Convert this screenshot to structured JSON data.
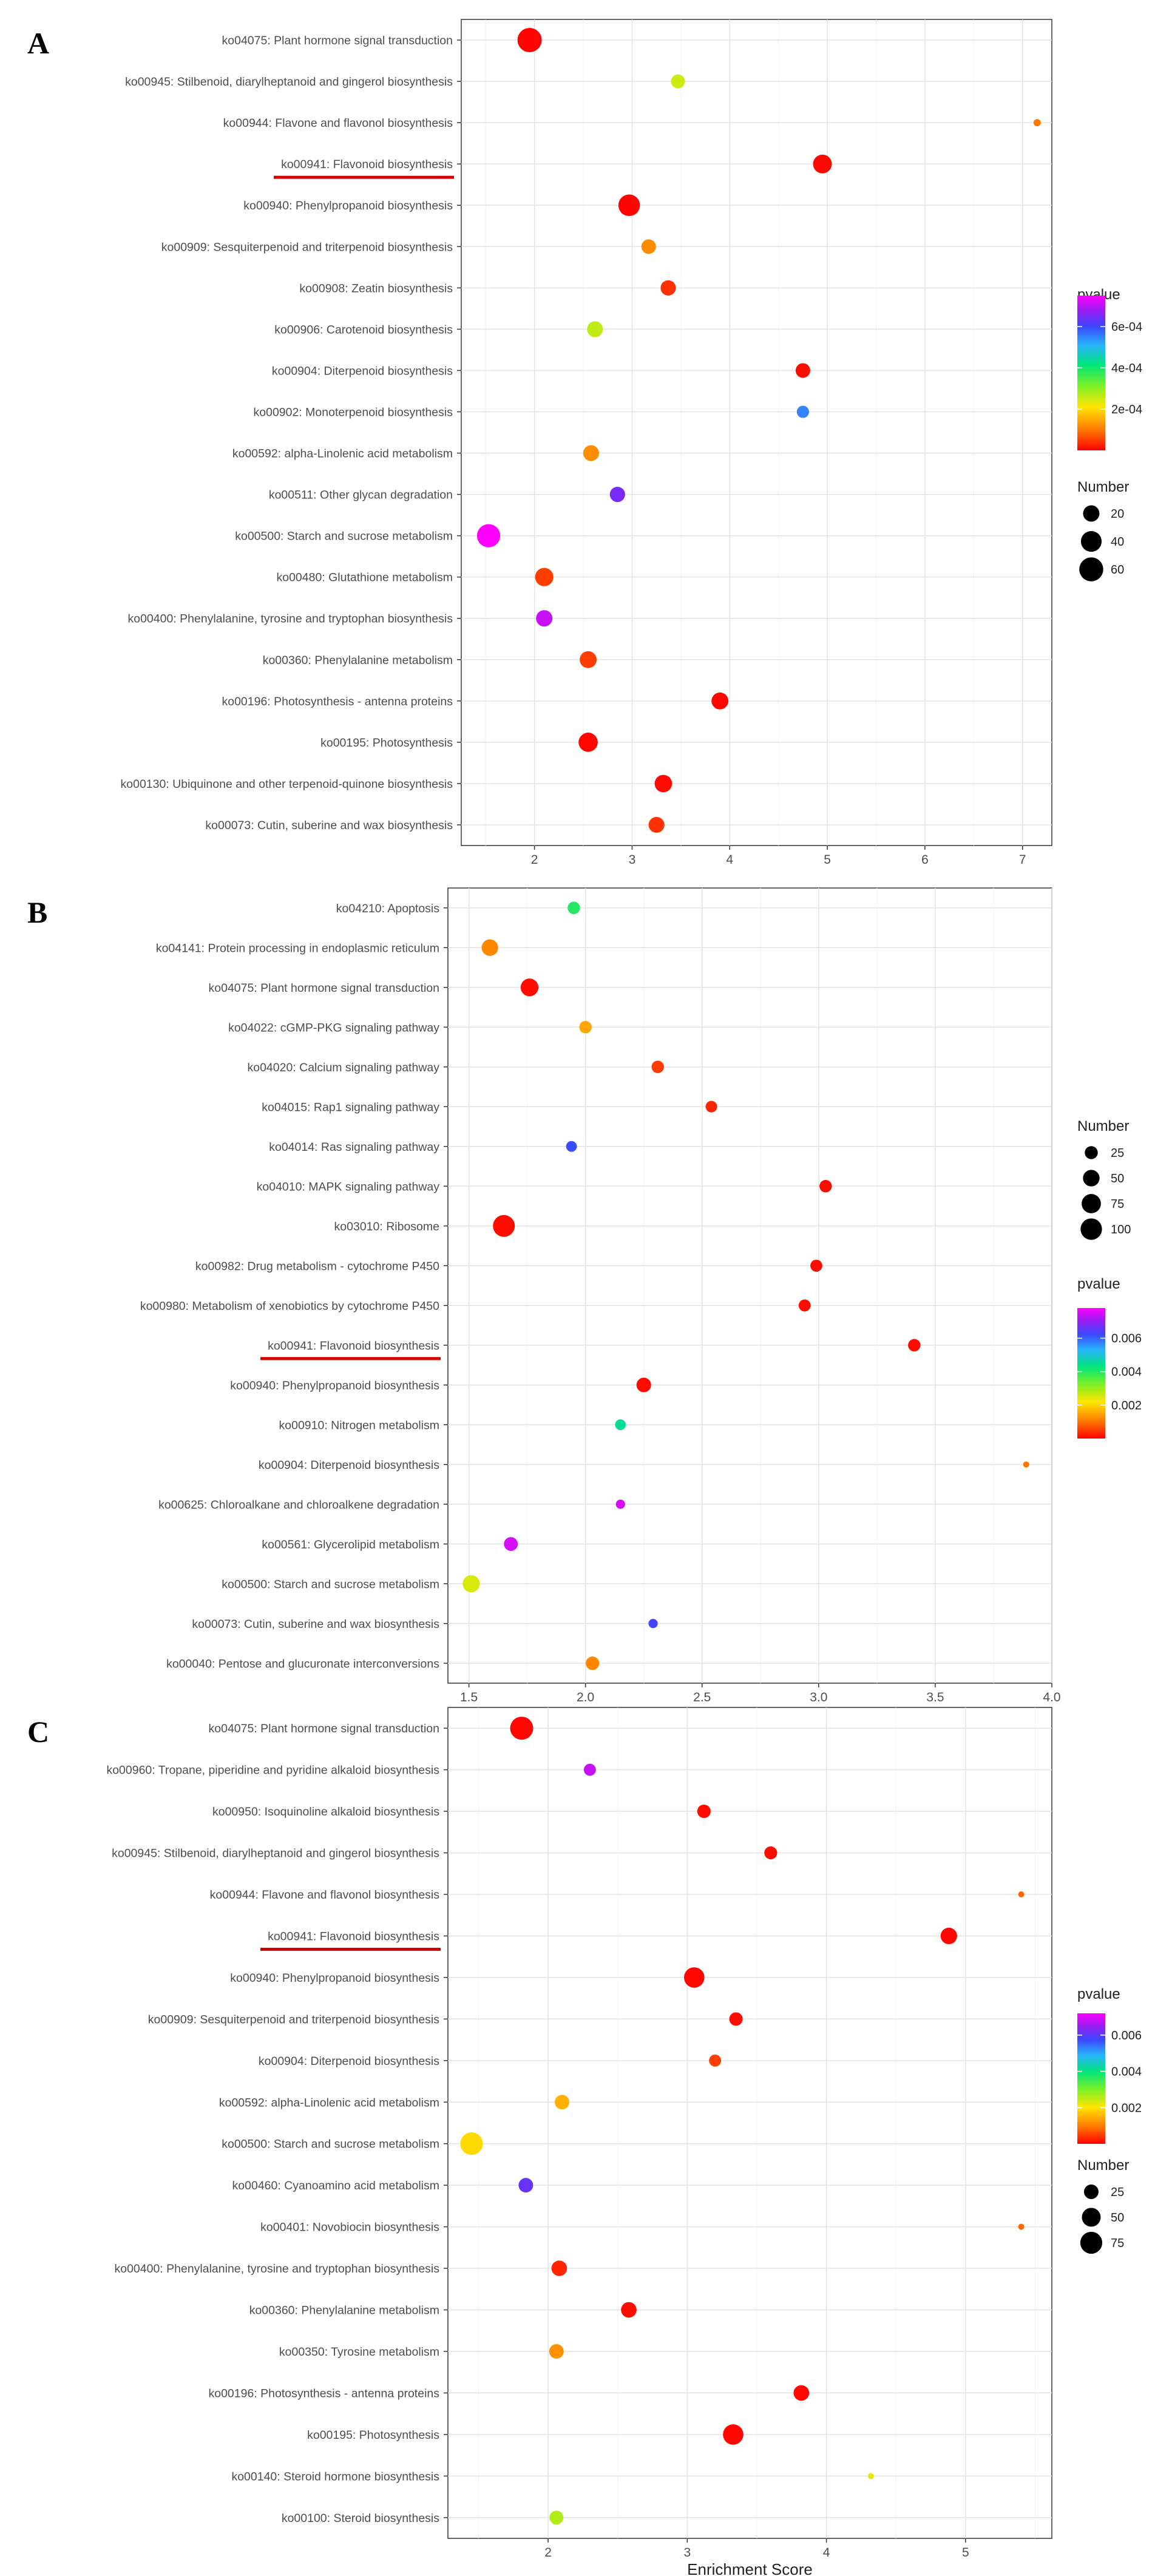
{
  "chart_data": [
    {
      "panel": "A",
      "type": "scatter",
      "title": "",
      "xlabel": "",
      "ylabel": "",
      "xlim": [
        1.25,
        7.3
      ],
      "xticks": [
        2,
        3,
        4,
        5,
        6,
        7
      ],
      "highlight": "ko00941: Flavonoid biosynthesis",
      "points": [
        {
          "label": "ko04075: Plant hormone signal transduction",
          "x": 1.95,
          "number": 62,
          "pvalue": 3e-06
        },
        {
          "label": "ko00945: Stilbenoid, diarylheptanoid and gingerol biosynthesis",
          "x": 3.47,
          "number": 12,
          "pvalue": 0.00025
        },
        {
          "label": "ko00944: Flavone and flavonol biosynthesis",
          "x": 7.15,
          "number": 3,
          "pvalue": 0.0001
        },
        {
          "label": "ko00941: Flavonoid biosynthesis",
          "x": 4.95,
          "number": 30,
          "pvalue": 5e-06
        },
        {
          "label": "ko00940: Phenylpropanoid biosynthesis",
          "x": 2.97,
          "number": 45,
          "pvalue": 3e-06
        },
        {
          "label": "ko00909: Sesquiterpenoid and triterpenoid biosynthesis",
          "x": 3.17,
          "number": 14,
          "pvalue": 0.00012
        },
        {
          "label": "ko00908: Zeatin biosynthesis",
          "x": 3.37,
          "number": 16,
          "pvalue": 4e-05
        },
        {
          "label": "ko00906: Carotenoid biosynthesis",
          "x": 2.62,
          "number": 18,
          "pvalue": 0.00026
        },
        {
          "label": "ko00904: Diterpenoid biosynthesis",
          "x": 4.75,
          "number": 14,
          "pvalue": 1e-05
        },
        {
          "label": "ko00902: Monoterpenoid biosynthesis",
          "x": 4.75,
          "number": 8,
          "pvalue": 0.00055
        },
        {
          "label": "ko00592: alpha-Linolenic acid metabolism",
          "x": 2.58,
          "number": 18,
          "pvalue": 0.00012
        },
        {
          "label": "ko00511: Other glycan degradation",
          "x": 2.85,
          "number": 16,
          "pvalue": 0.00065
        },
        {
          "label": "ko00500: Starch and sucrose metabolism",
          "x": 1.53,
          "number": 55,
          "pvalue": 0.00075
        },
        {
          "label": "ko00480: Glutathione metabolism",
          "x": 2.1,
          "number": 28,
          "pvalue": 5e-05
        },
        {
          "label": "ko00400: Phenylalanine, tyrosine and tryptophan biosynthesis",
          "x": 2.1,
          "number": 20,
          "pvalue": 0.00071
        },
        {
          "label": "ko00360: Phenylalanine metabolism",
          "x": 2.55,
          "number": 22,
          "pvalue": 5e-05
        },
        {
          "label": "ko00196: Photosynthesis - antenna proteins",
          "x": 3.9,
          "number": 22,
          "pvalue": 5e-06
        },
        {
          "label": "ko00195: Photosynthesis",
          "x": 2.55,
          "number": 32,
          "pvalue": 5e-06
        },
        {
          "label": "ko00130: Ubiquinone and other terpenoid-quinone biosynthesis",
          "x": 3.32,
          "number": 24,
          "pvalue": 8e-06
        },
        {
          "label": "ko00073: Cutin, suberine and wax biosynthesis",
          "x": 3.25,
          "number": 18,
          "pvalue": 4e-05
        }
      ],
      "color_legend": {
        "title": "pvalue",
        "min": 0,
        "max": 0.00075,
        "ticks": [
          0.0002,
          0.0004,
          0.0006
        ],
        "tick_labels": [
          "2e-04",
          "4e-04",
          "6e-04"
        ]
      },
      "size_legend": {
        "title": "Number",
        "values": [
          20,
          40,
          60
        ],
        "labels": [
          "20",
          "40",
          "60"
        ],
        "range": [
          3,
          62
        ]
      }
    },
    {
      "panel": "B",
      "type": "scatter",
      "title": "",
      "xlabel": "",
      "ylabel": "",
      "xlim": [
        1.41,
        4.0
      ],
      "xticks": [
        1.5,
        2.0,
        2.5,
        3.0,
        3.5,
        4.0
      ],
      "xtick_labels": [
        "1.5",
        "2.0",
        "2.5",
        "3.0",
        "3.5",
        "4.0"
      ],
      "highlight": "ko00941: Flavonoid biosynthesis",
      "points": [
        {
          "label": "ko04210: Apoptosis",
          "x": 1.95,
          "number": 22,
          "pvalue": 0.004
        },
        {
          "label": "ko04141: Protein processing in endoplasmic reticulum",
          "x": 1.59,
          "number": 50,
          "pvalue": 0.0012
        },
        {
          "label": "ko04075: Plant hormone signal transduction",
          "x": 1.76,
          "number": 60,
          "pvalue": 0.0001
        },
        {
          "label": "ko04022: cGMP-PKG signaling pathway",
          "x": 2.0,
          "number": 22,
          "pvalue": 0.0015
        },
        {
          "label": "ko04020: Calcium signaling pathway",
          "x": 2.31,
          "number": 22,
          "pvalue": 0.0005
        },
        {
          "label": "ko04015: Rap1 signaling pathway",
          "x": 2.54,
          "number": 18,
          "pvalue": 0.0003
        },
        {
          "label": "ko04014: Ras signaling pathway",
          "x": 1.94,
          "number": 15,
          "pvalue": 0.0062
        },
        {
          "label": "ko04010: MAPK signaling pathway",
          "x": 3.03,
          "number": 22,
          "pvalue": 0.0001
        },
        {
          "label": "ko03010: Ribosome",
          "x": 1.65,
          "number": 105,
          "pvalue": 0.0001
        },
        {
          "label": "ko00982: Drug metabolism - cytochrome P450",
          "x": 2.99,
          "number": 20,
          "pvalue": 0.0001
        },
        {
          "label": "ko00980: Metabolism of xenobiotics by cytochrome P450",
          "x": 2.94,
          "number": 20,
          "pvalue": 0.0001
        },
        {
          "label": "ko00941: Flavonoid biosynthesis",
          "x": 3.41,
          "number": 22,
          "pvalue": 0.0001
        },
        {
          "label": "ko00940: Phenylpropanoid biosynthesis",
          "x": 2.25,
          "number": 35,
          "pvalue": 0.0001
        },
        {
          "label": "ko00910: Nitrogen metabolism",
          "x": 2.15,
          "number": 15,
          "pvalue": 0.0045
        },
        {
          "label": "ko00904: Diterpenoid biosynthesis",
          "x": 3.89,
          "number": 6,
          "pvalue": 0.001
        },
        {
          "label": "ko00625: Chloroalkane and chloroalkene degradation",
          "x": 2.15,
          "number": 10,
          "pvalue": 0.0075
        },
        {
          "label": "ko00561: Glycerolipid metabolism",
          "x": 1.68,
          "number": 30,
          "pvalue": 0.0075
        },
        {
          "label": "ko00500: Starch and sucrose metabolism",
          "x": 1.51,
          "number": 55,
          "pvalue": 0.0025
        },
        {
          "label": "ko00073: Cutin, suberine and wax biosynthesis",
          "x": 2.29,
          "number": 10,
          "pvalue": 0.0063
        },
        {
          "label": "ko00040: Pentose and glucuronate interconversions",
          "x": 2.03,
          "number": 28,
          "pvalue": 0.0012
        }
      ],
      "color_legend": {
        "title": "pvalue",
        "min": 0,
        "max": 0.0078,
        "ticks": [
          0.002,
          0.004,
          0.006
        ],
        "tick_labels": [
          "0.002",
          "0.004",
          "0.006"
        ]
      },
      "size_legend": {
        "title": "Number",
        "values": [
          25,
          50,
          75,
          100
        ],
        "labels": [
          "25",
          "50",
          "75",
          "100"
        ],
        "range": [
          6,
          105
        ]
      }
    },
    {
      "panel": "C",
      "type": "scatter",
      "title": "",
      "xlabel": "Enrichment Score",
      "ylabel": "",
      "xlim": [
        1.28,
        5.62
      ],
      "xticks": [
        2,
        3,
        4,
        5
      ],
      "highlight": "ko00941: Flavonoid biosynthesis",
      "points": [
        {
          "label": "ko04075: Plant hormone signal transduction",
          "x": 1.81,
          "number": 85,
          "pvalue": 5e-05
        },
        {
          "label": "ko00960: Tropane, piperidine and pyridine alkaloid biosynthesis",
          "x": 2.3,
          "number": 15,
          "pvalue": 0.0068
        },
        {
          "label": "ko00950: Isoquinoline alkaloid biosynthesis",
          "x": 3.12,
          "number": 20,
          "pvalue": 0.0001
        },
        {
          "label": "ko00945: Stilbenoid, diarylheptanoid and gingerol biosynthesis",
          "x": 3.6,
          "number": 18,
          "pvalue": 0.0001
        },
        {
          "label": "ko00944: Flavone and flavonol biosynthesis",
          "x": 5.4,
          "number": 5,
          "pvalue": 0.0008
        },
        {
          "label": "ko00941: Flavonoid biosynthesis",
          "x": 4.88,
          "number": 35,
          "pvalue": 5e-05
        },
        {
          "label": "ko00940: Phenylpropanoid biosynthesis",
          "x": 3.05,
          "number": 62,
          "pvalue": 5e-05
        },
        {
          "label": "ko00909: Sesquiterpenoid and triterpenoid biosynthesis",
          "x": 3.35,
          "number": 20,
          "pvalue": 0.0001
        },
        {
          "label": "ko00904: Diterpenoid biosynthesis",
          "x": 3.2,
          "number": 15,
          "pvalue": 0.0005
        },
        {
          "label": "ko00592: alpha-Linolenic acid metabolism",
          "x": 2.1,
          "number": 25,
          "pvalue": 0.0015
        },
        {
          "label": "ko00500: Starch and sucrose metabolism",
          "x": 1.45,
          "number": 80,
          "pvalue": 0.0019
        },
        {
          "label": "ko00460: Cyanoamino acid metabolism",
          "x": 1.84,
          "number": 25,
          "pvalue": 0.0061
        },
        {
          "label": "ko00401: Novobiocin biosynthesis",
          "x": 5.4,
          "number": 5,
          "pvalue": 0.0008
        },
        {
          "label": "ko00400: Phenylalanine, tyrosine and tryptophan biosynthesis",
          "x": 2.08,
          "number": 30,
          "pvalue": 0.0003
        },
        {
          "label": "ko00360: Phenylalanine metabolism",
          "x": 2.58,
          "number": 30,
          "pvalue": 0.0001
        },
        {
          "label": "ko00350: Tyrosine metabolism",
          "x": 2.06,
          "number": 25,
          "pvalue": 0.0012
        },
        {
          "label": "ko00196: Photosynthesis - antenna proteins",
          "x": 3.82,
          "number": 30,
          "pvalue": 5e-05
        },
        {
          "label": "ko00195: Photosynthesis",
          "x": 3.33,
          "number": 62,
          "pvalue": 5e-05
        },
        {
          "label": "ko00140: Steroid hormone biosynthesis",
          "x": 4.32,
          "number": 5,
          "pvalue": 0.0022
        },
        {
          "label": "ko00100: Steroid biosynthesis",
          "x": 2.06,
          "number": 22,
          "pvalue": 0.0026
        }
      ],
      "color_legend": {
        "title": "pvalue",
        "min": 0,
        "max": 0.0072,
        "ticks": [
          0.002,
          0.004,
          0.006
        ],
        "tick_labels": [
          "0.002",
          "0.004",
          "0.006"
        ]
      },
      "size_legend": {
        "title": "Number",
        "values": [
          25,
          50,
          75
        ],
        "labels": [
          "25",
          "50",
          "75"
        ],
        "range": [
          5,
          85
        ]
      }
    }
  ]
}
